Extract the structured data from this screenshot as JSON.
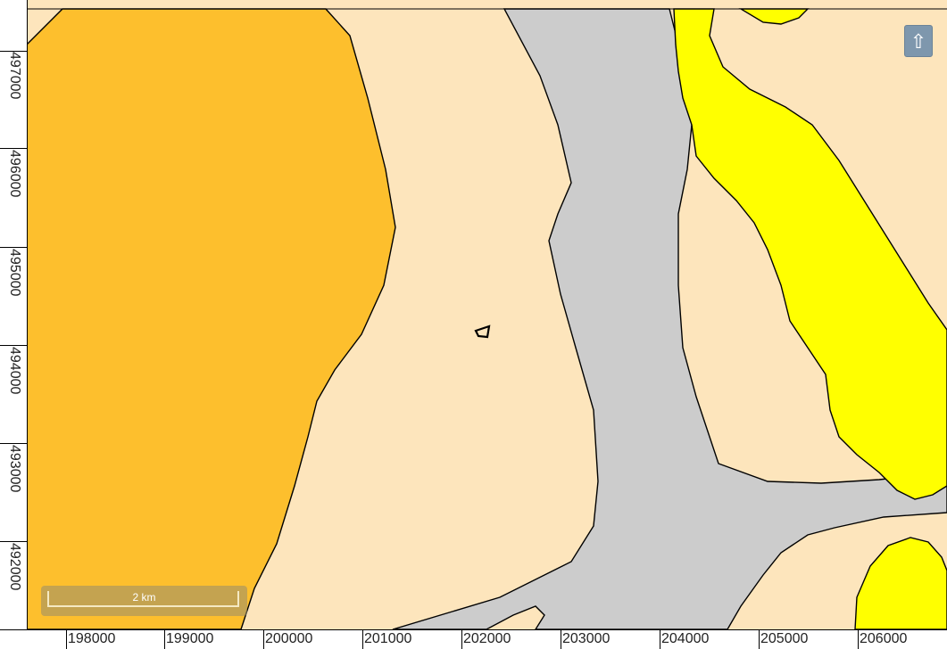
{
  "map": {
    "colors": {
      "background": "#fde5bc",
      "dark_orange": "#fdbf2d",
      "gray": "#cccccc",
      "yellow": "#ffff00",
      "stroke": "#000000"
    }
  },
  "axes": {
    "y_labels": [
      "497000",
      "496000",
      "495000",
      "494000",
      "493000",
      "492000"
    ],
    "x_labels": [
      "198000",
      "199000",
      "200000",
      "201000",
      "202000",
      "203000",
      "204000",
      "205000",
      "206000"
    ]
  },
  "controls": {
    "north_arrow": "⇧",
    "north_icon": "north-arrow-icon"
  },
  "scale_bar": {
    "label": "2 km"
  }
}
